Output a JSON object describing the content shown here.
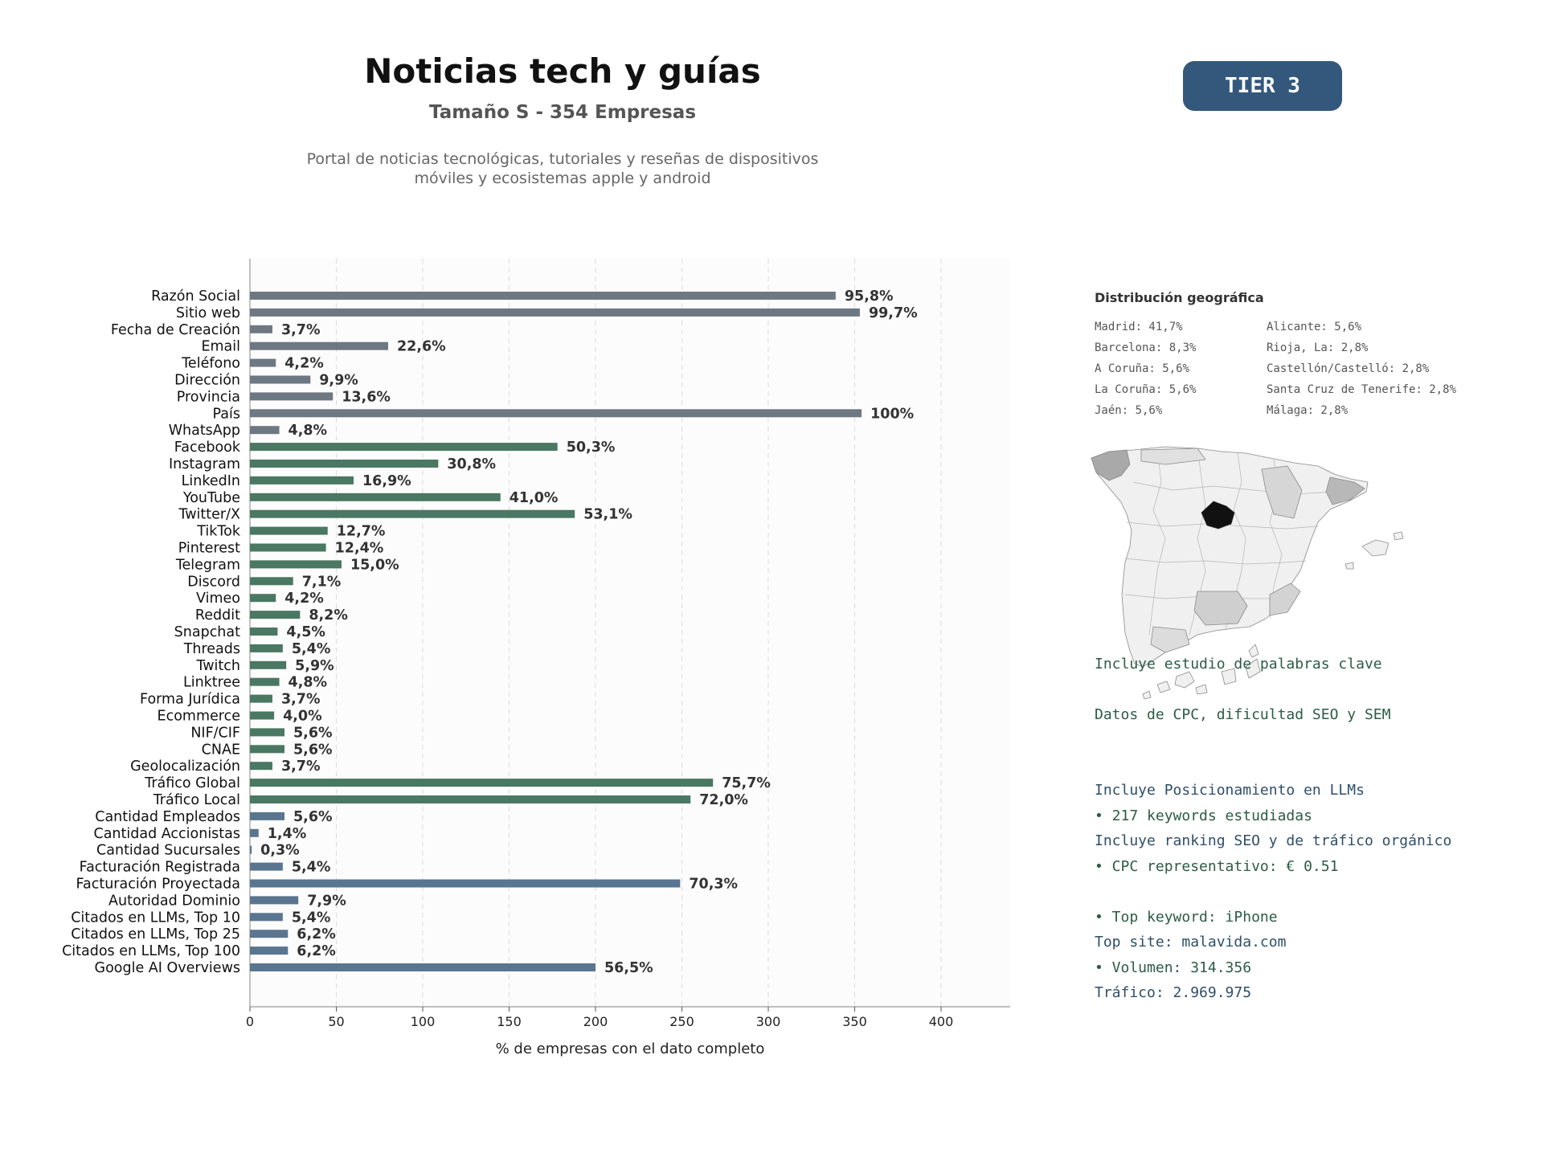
{
  "header": {
    "title": "Noticias tech y guías",
    "subtitle": "Tamaño S - 354 Empresas",
    "description_lines": [
      "Portal de noticias tecnológicas, tutoriales y reseñas de dispositivos",
      "móviles y ecosistemas apple y android"
    ],
    "tier_label": "TIER 3"
  },
  "colors": {
    "group_basic": "#6e7882",
    "group_social": "#4a7862",
    "group_business": "#5a7590",
    "badge": "#34587c"
  },
  "chart_data": {
    "type": "bar",
    "orientation": "horizontal",
    "xlabel": "% de empresas con el dato completo",
    "xlim": [
      0,
      440
    ],
    "xticks": [
      0,
      50,
      100,
      150,
      200,
      250,
      300,
      350,
      400
    ],
    "grid": "vertical dashed",
    "categories": [
      "Razón Social",
      "Sitio web",
      "Fecha de Creación",
      "Email",
      "Teléfono",
      "Dirección",
      "Provincia",
      "País",
      "WhatsApp",
      "Facebook",
      "Instagram",
      "LinkedIn",
      "YouTube",
      "Twitter/X",
      "TikTok",
      "Pinterest",
      "Telegram",
      "Discord",
      "Vimeo",
      "Reddit",
      "Snapchat",
      "Threads",
      "Twitch",
      "Linktree",
      "Forma Jurídica",
      "Ecommerce",
      "NIF/CIF",
      "CNAE",
      "Geolocalización",
      "Tráfico Global",
      "Tráfico Local",
      "Cantidad Empleados",
      "Cantidad Accionistas",
      "Cantidad Sucursales",
      "Facturación Registrada",
      "Facturación Proyectada",
      "Autoridad Dominio",
      "Citados en LLMs, Top 10",
      "Citados en LLMs, Top 25",
      "Citados en LLMs, Top 100",
      "Google AI Overviews"
    ],
    "values": [
      339,
      353,
      13,
      80,
      15,
      35,
      48,
      354,
      17,
      178,
      109,
      60,
      145,
      188,
      45,
      44,
      53,
      25,
      15,
      29,
      16,
      19,
      21,
      17,
      13,
      14,
      20,
      20,
      13,
      268,
      255,
      20,
      5,
      1,
      19,
      249,
      28,
      19,
      22,
      22,
      200
    ],
    "data_labels": [
      "95,8%",
      "99,7%",
      "3,7%",
      "22,6%",
      "4,2%",
      "9,9%",
      "13,6%",
      "100%",
      "4,8%",
      "50,3%",
      "30,8%",
      "16,9%",
      "41,0%",
      "53,1%",
      "12,7%",
      "12,4%",
      "15,0%",
      "7,1%",
      "4,2%",
      "8,2%",
      "4,5%",
      "5,4%",
      "5,9%",
      "4,8%",
      "3,7%",
      "4,0%",
      "5,6%",
      "5,6%",
      "3,7%",
      "75,7%",
      "72,0%",
      "5,6%",
      "1,4%",
      "0,3%",
      "5,4%",
      "70,3%",
      "7,9%",
      "5,4%",
      "6,2%",
      "6,2%",
      "56,5%"
    ],
    "groups": [
      "basic",
      "basic",
      "basic",
      "basic",
      "basic",
      "basic",
      "basic",
      "basic",
      "basic",
      "social",
      "social",
      "social",
      "social",
      "social",
      "social",
      "social",
      "social",
      "social",
      "social",
      "social",
      "social",
      "social",
      "social",
      "social",
      "social",
      "social",
      "social",
      "social",
      "social",
      "social",
      "social",
      "business",
      "business",
      "business",
      "business",
      "business",
      "business",
      "business",
      "business",
      "business",
      "business"
    ]
  },
  "geo": {
    "title": "Distribución geográfica",
    "items": [
      "Madrid: 41,7%",
      "Alicante: 5,6%",
      "Barcelona: 8,3%",
      "Rioja, La: 2,8%",
      "A Coruña: 5,6%",
      "Castellón/Castelló: 2,8%",
      "La Coruña: 5,6%",
      "Santa Cruz de Tenerife: 2,8%",
      "Jaén: 5,6%",
      "Málaga: 2,8%"
    ]
  },
  "keywords_block": {
    "lines": [
      "Incluye estudio de palabras clave",
      "Datos de CPC, dificultad SEO y SEM",
      "",
      "• 217 keywords estudiadas",
      "• CPC representativo: € 0.51",
      "• Top keyword: iPhone",
      "• Volumen: 314.356"
    ]
  },
  "llm_block": {
    "lines": [
      "Incluye Posicionamiento en LLMs",
      "Incluye ranking SEO y de tráfico orgánico",
      "",
      "Top site: malavida.com",
      "Tráfico: 2.969.975"
    ]
  }
}
